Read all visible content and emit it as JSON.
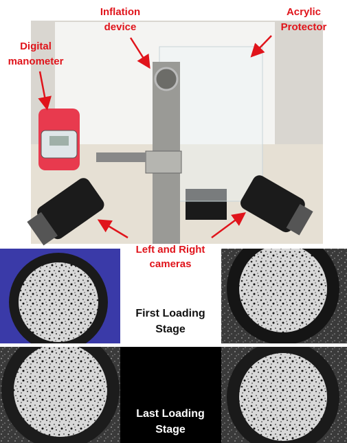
{
  "labels": {
    "inflation_device": [
      "Inflation",
      "device"
    ],
    "acrylic_protector": [
      "Acrylic",
      "Protector"
    ],
    "digital_manometer": [
      "Digital",
      "manometer"
    ],
    "cameras": [
      "Left and Right",
      "cameras"
    ]
  },
  "panels": {
    "first_loading_stage": [
      "First Loading",
      "Stage"
    ],
    "last_loading_stage": [
      "Last Loading",
      "Stage"
    ]
  }
}
